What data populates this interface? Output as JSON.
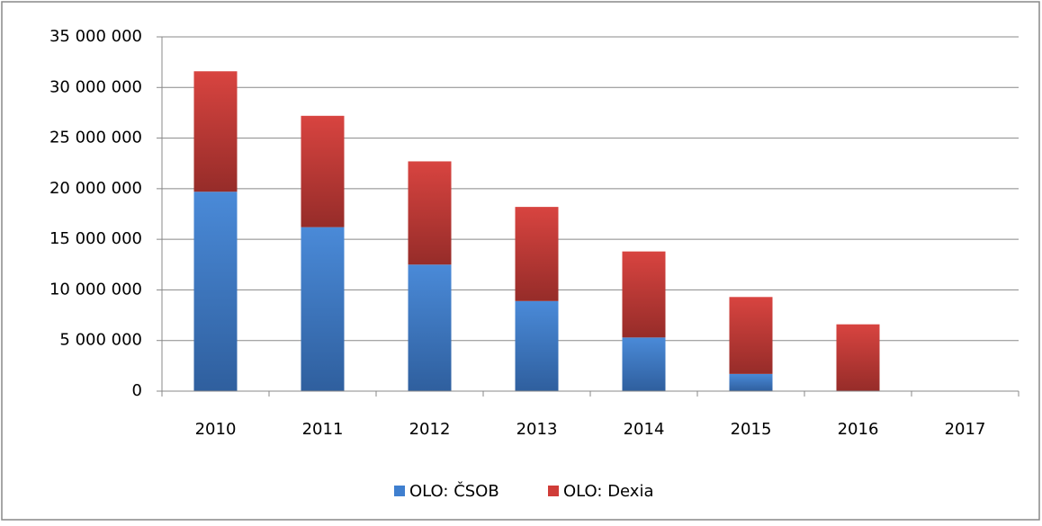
{
  "chart_data": {
    "type": "stacked_bar",
    "categories": [
      "2010",
      "2011",
      "2012",
      "2013",
      "2014",
      "2015",
      "2016",
      "2017"
    ],
    "series": [
      {
        "name": "OLO: ČSOB",
        "color": "#3f7fcf",
        "values": [
          19700000,
          16200000,
          12500000,
          8900000,
          5300000,
          1700000,
          0,
          0
        ]
      },
      {
        "name": "OLO: Dexia",
        "color": "#d03c38",
        "values": [
          11900000,
          11000000,
          10200000,
          9300000,
          8500000,
          7600000,
          6600000,
          0
        ]
      }
    ],
    "ylim": [
      0,
      35000000
    ],
    "yticks": [
      0,
      {
        "value": 5000000,
        "label": "5 000 000"
      },
      {
        "value": 10000000,
        "label": "10 000 000"
      },
      {
        "value": 15000000,
        "label": "15 000 000"
      },
      {
        "value": 20000000,
        "label": "20 000 000"
      },
      {
        "value": 25000000,
        "label": "25 000 000"
      },
      {
        "value": 30000000,
        "label": "30 000 000"
      },
      {
        "value": 35000000,
        "label": "35 000 000"
      }
    ],
    "grid": true,
    "legend": "bottom"
  }
}
